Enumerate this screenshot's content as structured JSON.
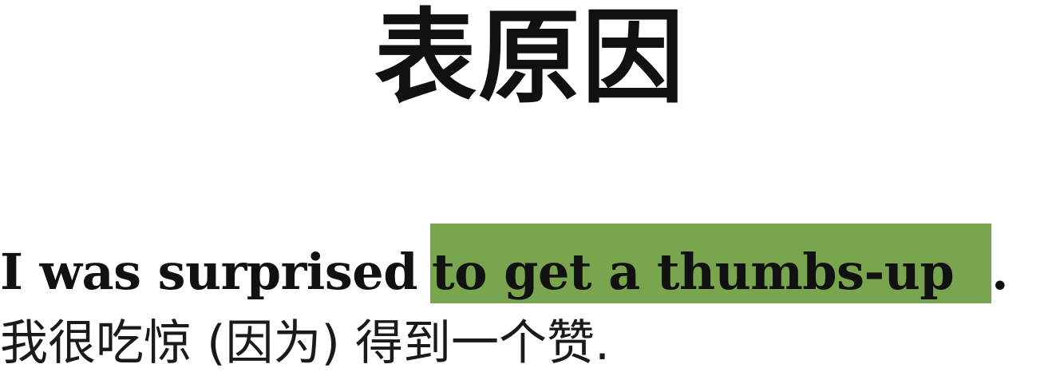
{
  "title": "表原因",
  "english_sentence": {
    "prefix": "I was surprised",
    "highlighted": "to get a thumbs-up",
    "suffix": "."
  },
  "chinese_sentence": "我很吃惊 (因为) 得到一个赞.",
  "colors": {
    "highlight": "#78a54e",
    "text": "#111111",
    "background": "#ffffff"
  }
}
